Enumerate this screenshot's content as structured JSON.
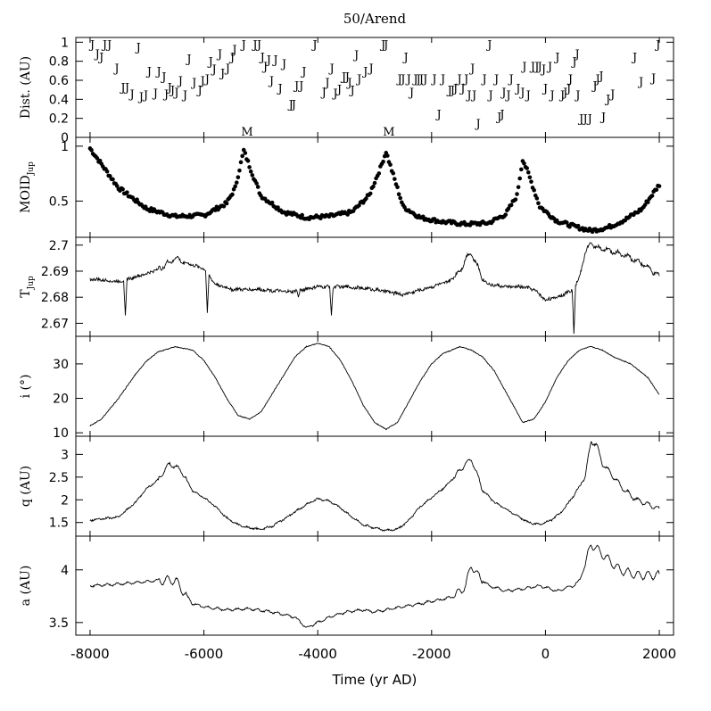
{
  "chart_data": {
    "title": "50/Arend",
    "xlabel": "Time (yr AD)",
    "xlim": [
      -8250,
      2250
    ],
    "xticks": [
      -8000,
      -6000,
      -4000,
      -2000,
      0,
      2000
    ],
    "panels": [
      {
        "id": "dist",
        "type": "scatter-letters",
        "ylabel": "Dist. (AU)",
        "ylim": [
          0,
          1.05
        ],
        "yticks": [
          0,
          0.2,
          0.4,
          0.6,
          0.8,
          1
        ],
        "ytick_labels": [
          "0",
          "0.2",
          "0.4",
          "0.6",
          "0.8",
          "1"
        ],
        "annotations": [
          {
            "text": "M",
            "x": -5240,
            "y": 0.01
          },
          {
            "text": "M",
            "x": -2750,
            "y": 0.01
          }
        ],
        "points_label": "J",
        "points": [
          [
            -7960,
            0.98
          ],
          [
            -7870,
            0.88
          ],
          [
            -7800,
            0.85
          ],
          [
            -7740,
            0.98
          ],
          [
            -7660,
            0.98
          ],
          [
            -7530,
            0.73
          ],
          [
            -7420,
            0.53
          ],
          [
            -7350,
            0.53
          ],
          [
            -7260,
            0.46
          ],
          [
            -7150,
            0.95
          ],
          [
            -7100,
            0.43
          ],
          [
            -7020,
            0.45
          ],
          [
            -6960,
            0.7
          ],
          [
            -6850,
            0.47
          ],
          [
            -6790,
            0.7
          ],
          [
            -6700,
            0.64
          ],
          [
            -6660,
            0.46
          ],
          [
            -6600,
            0.53
          ],
          [
            -6550,
            0.5
          ],
          [
            -6480,
            0.48
          ],
          [
            -6410,
            0.6
          ],
          [
            -6330,
            0.45
          ],
          [
            -6260,
            0.83
          ],
          [
            -6170,
            0.58
          ],
          [
            -6070,
            0.5
          ],
          [
            -6020,
            0.6
          ],
          [
            -5940,
            0.62
          ],
          [
            -5880,
            0.8
          ],
          [
            -5820,
            0.72
          ],
          [
            -5720,
            0.88
          ],
          [
            -5670,
            0.68
          ],
          [
            -5580,
            0.73
          ],
          [
            -5500,
            0.85
          ],
          [
            -5460,
            0.93
          ],
          [
            -5300,
            0.98
          ],
          [
            -5100,
            0.98
          ],
          [
            -5030,
            0.98
          ],
          [
            -4970,
            0.85
          ],
          [
            -4920,
            0.75
          ],
          [
            -4860,
            0.82
          ],
          [
            -4810,
            0.6
          ],
          [
            -4740,
            0.82
          ],
          [
            -4660,
            0.52
          ],
          [
            -4590,
            0.78
          ],
          [
            -4470,
            0.35
          ],
          [
            -4420,
            0.35
          ],
          [
            -4370,
            0.55
          ],
          [
            -4290,
            0.55
          ],
          [
            -4240,
            0.7
          ],
          [
            -4050,
            0.98
          ],
          [
            -3890,
            0.48
          ],
          [
            -3830,
            0.58
          ],
          [
            -3750,
            0.73
          ],
          [
            -3690,
            0.47
          ],
          [
            -3620,
            0.51
          ],
          [
            -3540,
            0.64
          ],
          [
            -3480,
            0.64
          ],
          [
            -3440,
            0.58
          ],
          [
            -3390,
            0.5
          ],
          [
            -3320,
            0.87
          ],
          [
            -3270,
            0.62
          ],
          [
            -3160,
            0.7
          ],
          [
            -3060,
            0.73
          ],
          [
            -2850,
            0.98
          ],
          [
            -2800,
            0.98
          ],
          [
            -2560,
            0.62
          ],
          [
            -2500,
            0.62
          ],
          [
            -2450,
            0.85
          ],
          [
            -2400,
            0.62
          ],
          [
            -2350,
            0.48
          ],
          [
            -2280,
            0.62
          ],
          [
            -2230,
            0.62
          ],
          [
            -2180,
            0.62
          ],
          [
            -2110,
            0.62
          ],
          [
            -1950,
            0.62
          ],
          [
            -1870,
            0.25
          ],
          [
            -1800,
            0.62
          ],
          [
            -1680,
            0.5
          ],
          [
            -1630,
            0.5
          ],
          [
            -1580,
            0.52
          ],
          [
            -1510,
            0.62
          ],
          [
            -1450,
            0.52
          ],
          [
            -1390,
            0.62
          ],
          [
            -1340,
            0.45
          ],
          [
            -1280,
            0.73
          ],
          [
            -1250,
            0.45
          ],
          [
            -1180,
            0.15
          ],
          [
            -1070,
            0.62
          ],
          [
            -980,
            0.98
          ],
          [
            -960,
            0.45
          ],
          [
            -860,
            0.62
          ],
          [
            -810,
            0.22
          ],
          [
            -760,
            0.25
          ],
          [
            -730,
            0.48
          ],
          [
            -650,
            0.45
          ],
          [
            -600,
            0.62
          ],
          [
            -480,
            0.52
          ],
          [
            -400,
            0.48
          ],
          [
            -370,
            0.75
          ],
          [
            -300,
            0.45
          ],
          [
            -220,
            0.75
          ],
          [
            -150,
            0.75
          ],
          [
            -100,
            0.75
          ],
          [
            -30,
            0.72
          ],
          [
            0,
            0.52
          ],
          [
            80,
            0.75
          ],
          [
            120,
            0.45
          ],
          [
            210,
            0.85
          ],
          [
            300,
            0.45
          ],
          [
            350,
            0.48
          ],
          [
            410,
            0.52
          ],
          [
            440,
            0.62
          ],
          [
            510,
            0.8
          ],
          [
            560,
            0.88
          ],
          [
            570,
            0.45
          ],
          [
            630,
            0.2
          ],
          [
            700,
            0.2
          ],
          [
            780,
            0.2
          ],
          [
            870,
            0.55
          ],
          [
            920,
            0.62
          ],
          [
            980,
            0.65
          ],
          [
            1020,
            0.22
          ],
          [
            1100,
            0.41
          ],
          [
            1180,
            0.46
          ],
          [
            1570,
            0.85
          ],
          [
            1680,
            0.59
          ],
          [
            1900,
            0.63
          ],
          [
            1980,
            0.98
          ]
        ]
      },
      {
        "id": "moid",
        "type": "scatter",
        "ylabel": "MOID",
        "ylabel_sub": "Jup",
        "ylim": [
          0.17,
          1.08
        ],
        "yticks": [
          0.5,
          1
        ],
        "ytick_labels": [
          "0.5",
          "1"
        ],
        "curve": {
          "x": [
            -8000,
            -7500,
            -7000,
            -6500,
            -6000,
            -5600,
            -5450,
            -5300,
            -5150,
            -5000,
            -4600,
            -4200,
            -3800,
            -3400,
            -3100,
            -2900,
            -2800,
            -2700,
            -2500,
            -2200,
            -1800,
            -1400,
            -1000,
            -700,
            -500,
            -400,
            -300,
            -100,
            200,
            500,
            800,
            1100,
            1400,
            1700,
            2000
          ],
          "y": [
            0.98,
            0.62,
            0.43,
            0.36,
            0.37,
            0.48,
            0.62,
            0.96,
            0.75,
            0.55,
            0.4,
            0.35,
            0.36,
            0.4,
            0.55,
            0.8,
            0.95,
            0.78,
            0.45,
            0.35,
            0.31,
            0.29,
            0.3,
            0.38,
            0.55,
            0.88,
            0.75,
            0.45,
            0.32,
            0.27,
            0.23,
            0.26,
            0.33,
            0.43,
            0.65
          ]
        }
      },
      {
        "id": "tjup",
        "type": "line",
        "ylabel": "T",
        "ylabel_sub": "Jup",
        "ylim": [
          2.665,
          2.703
        ],
        "yticks": [
          2.67,
          2.68,
          2.69,
          2.7
        ],
        "ytick_labels": [
          "2.67",
          "2.68",
          "2.69",
          "2.7"
        ],
        "x": [
          -8000,
          -7500,
          -7000,
          -6700,
          -6500,
          -6300,
          -6000,
          -5800,
          -5500,
          -5000,
          -4500,
          -4000,
          -3500,
          -3000,
          -2500,
          -2000,
          -1700,
          -1500,
          -1400,
          -1300,
          -1100,
          -1000,
          -700,
          -400,
          -200,
          0,
          200,
          400,
          500,
          600,
          700,
          800,
          900,
          1100,
          1400,
          1700,
          2000
        ],
        "y": [
          2.687,
          2.686,
          2.689,
          2.692,
          2.695,
          2.693,
          2.691,
          2.685,
          2.683,
          2.683,
          2.682,
          2.684,
          2.684,
          2.683,
          2.681,
          2.684,
          2.686,
          2.69,
          2.695,
          2.697,
          2.687,
          2.685,
          2.684,
          2.684,
          2.683,
          2.679,
          2.68,
          2.682,
          2.683,
          2.688,
          2.697,
          2.701,
          2.699,
          2.698,
          2.696,
          2.693,
          2.688
        ],
        "dips": [
          {
            "x": -7380,
            "depth": 2.673
          },
          {
            "x": -5940,
            "depth": 2.674
          },
          {
            "x": -4340,
            "depth": 2.68
          },
          {
            "x": -3760,
            "depth": 2.673
          },
          {
            "x": 500,
            "depth": 2.666
          }
        ]
      },
      {
        "id": "incl",
        "type": "line",
        "ylabel": "i (°)",
        "ylim": [
          9,
          38
        ],
        "yticks": [
          10,
          20,
          30
        ],
        "ytick_labels": [
          "10",
          "20",
          "30"
        ],
        "x": [
          -8000,
          -7800,
          -7500,
          -7200,
          -7000,
          -6800,
          -6500,
          -6200,
          -6000,
          -5800,
          -5600,
          -5400,
          -5200,
          -5000,
          -4700,
          -4400,
          -4200,
          -4000,
          -3800,
          -3600,
          -3400,
          -3200,
          -3000,
          -2800,
          -2600,
          -2400,
          -2200,
          -2000,
          -1800,
          -1500,
          -1300,
          -1100,
          -900,
          -700,
          -500,
          -400,
          -200,
          0,
          200,
          400,
          600,
          800,
          1000,
          1200,
          1500,
          1800,
          2000
        ],
        "y": [
          12,
          14,
          20,
          27,
          31,
          33.5,
          35,
          34,
          31,
          26,
          20,
          15,
          14,
          16,
          24,
          32,
          35,
          36,
          35,
          31,
          25,
          18,
          13,
          11,
          13,
          19,
          25,
          30,
          33,
          35,
          34,
          32,
          28,
          22,
          16,
          13,
          14,
          19,
          26,
          31,
          34,
          35,
          34,
          32,
          30,
          26,
          21
        ]
      },
      {
        "id": "q",
        "type": "line",
        "ylabel": "q (AU)",
        "ylim": [
          1.2,
          3.4
        ],
        "yticks": [
          1.5,
          2,
          2.5,
          3
        ],
        "ytick_labels": [
          "1.5",
          "2",
          "2.5",
          "3"
        ],
        "x": [
          -8000,
          -7500,
          -7200,
          -7000,
          -6800,
          -6600,
          -6400,
          -6200,
          -6000,
          -5800,
          -5600,
          -5400,
          -5200,
          -5000,
          -4800,
          -4500,
          -4200,
          -4000,
          -3800,
          -3600,
          -3400,
          -3200,
          -3000,
          -2800,
          -2600,
          -2400,
          -2200,
          -2000,
          -1800,
          -1600,
          -1400,
          -1300,
          -1100,
          -900,
          -700,
          -500,
          -300,
          -100,
          100,
          300,
          500,
          700,
          800,
          900,
          1000,
          1200,
          1400,
          1600,
          1800,
          2000
        ],
        "y": [
          1.55,
          1.62,
          1.95,
          2.25,
          2.45,
          2.8,
          2.65,
          2.2,
          2.05,
          1.85,
          1.6,
          1.45,
          1.38,
          1.35,
          1.42,
          1.65,
          1.9,
          2.02,
          1.98,
          1.82,
          1.62,
          1.45,
          1.38,
          1.33,
          1.35,
          1.55,
          1.85,
          2.05,
          2.25,
          2.5,
          2.8,
          2.9,
          2.2,
          1.95,
          1.8,
          1.65,
          1.5,
          1.45,
          1.55,
          1.75,
          2.1,
          2.5,
          3.3,
          3.2,
          2.8,
          2.5,
          2.2,
          2.0,
          1.9,
          1.8
        ]
      },
      {
        "id": "a",
        "type": "line",
        "ylabel": "a (AU)",
        "ylim": [
          3.38,
          4.32
        ],
        "yticks": [
          3.5,
          4
        ],
        "ytick_labels": [
          "3.5",
          "4"
        ],
        "x": [
          -8000,
          -7600,
          -7200,
          -6800,
          -6500,
          -6300,
          -6200,
          -6000,
          -5600,
          -5200,
          -4800,
          -4400,
          -4200,
          -4000,
          -3800,
          -3500,
          -3200,
          -3000,
          -2800,
          -2500,
          -2200,
          -2000,
          -1800,
          -1600,
          -1400,
          -1300,
          -1200,
          -1000,
          -700,
          -400,
          -100,
          200,
          500,
          600,
          700,
          800,
          1000,
          1300,
          1600,
          2000
        ],
        "y": [
          3.85,
          3.86,
          3.88,
          3.9,
          3.9,
          3.75,
          3.68,
          3.65,
          3.62,
          3.63,
          3.6,
          3.55,
          3.45,
          3.5,
          3.55,
          3.6,
          3.62,
          3.6,
          3.62,
          3.65,
          3.68,
          3.7,
          3.72,
          3.75,
          3.85,
          4.05,
          3.95,
          3.85,
          3.8,
          3.82,
          3.85,
          3.8,
          3.85,
          3.9,
          4.05,
          4.25,
          4.15,
          4.0,
          3.95,
          3.95
        ]
      }
    ]
  }
}
